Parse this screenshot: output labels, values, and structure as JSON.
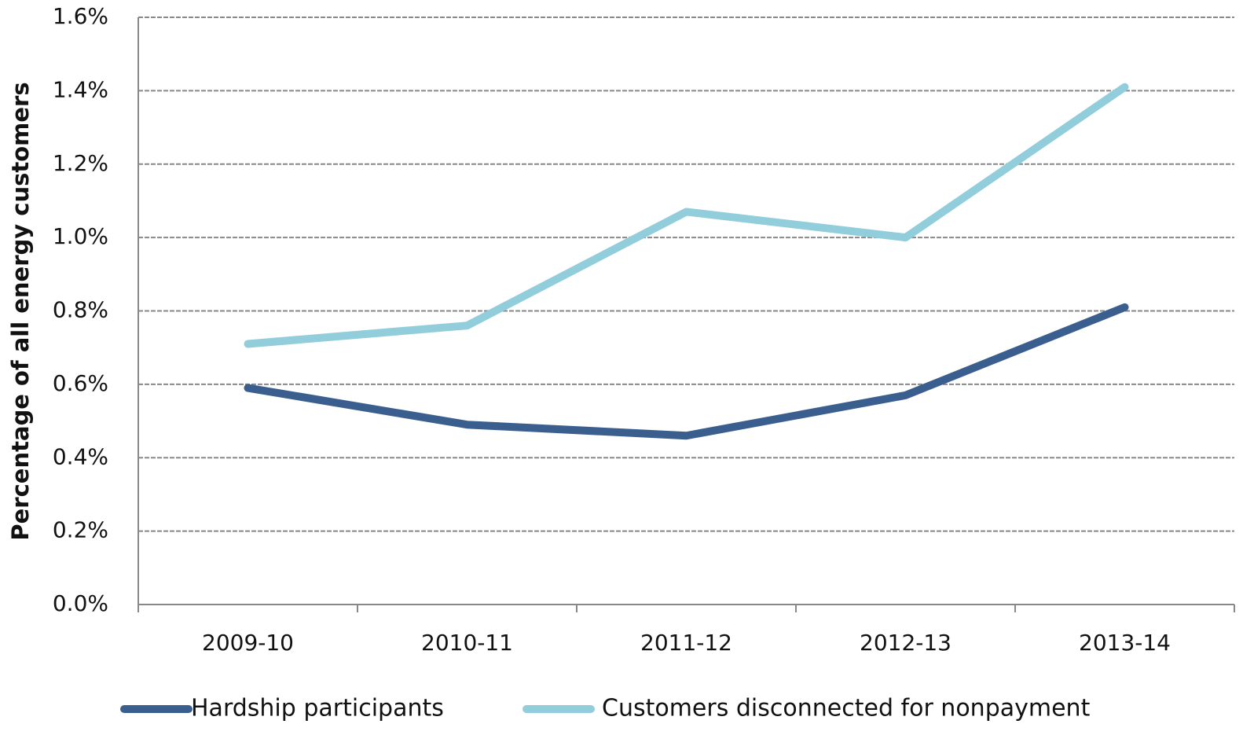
{
  "chart_data": {
    "type": "line",
    "y_label": "Percentage of all energy customers",
    "categories": [
      "2009-10",
      "2010-11",
      "2011-12",
      "2012-13",
      "2013-14"
    ],
    "series": [
      {
        "name": "Hardship participants",
        "color": "#3a5f8f",
        "values": [
          0.59,
          0.49,
          0.46,
          0.57,
          0.81
        ]
      },
      {
        "name": "Customers disconnected for nonpayment",
        "color": "#92cddc",
        "values": [
          0.71,
          0.76,
          1.07,
          1.0,
          1.41
        ]
      }
    ],
    "ylim": [
      0,
      1.6
    ],
    "yticks": [
      {
        "value": 0,
        "label": "0.0%"
      },
      {
        "value": 0.2,
        "label": "0.2%"
      },
      {
        "value": 0.4,
        "label": "0.4%"
      },
      {
        "value": 0.6,
        "label": "0.6%"
      },
      {
        "value": 0.8,
        "label": "0.8%"
      },
      {
        "value": 1.0,
        "label": "1.0%"
      },
      {
        "value": 1.2,
        "label": "1.2%"
      },
      {
        "value": 1.4,
        "label": "1.4%"
      },
      {
        "value": 1.6,
        "label": "1.6%"
      }
    ],
    "grid": true,
    "legend": "bottom"
  }
}
